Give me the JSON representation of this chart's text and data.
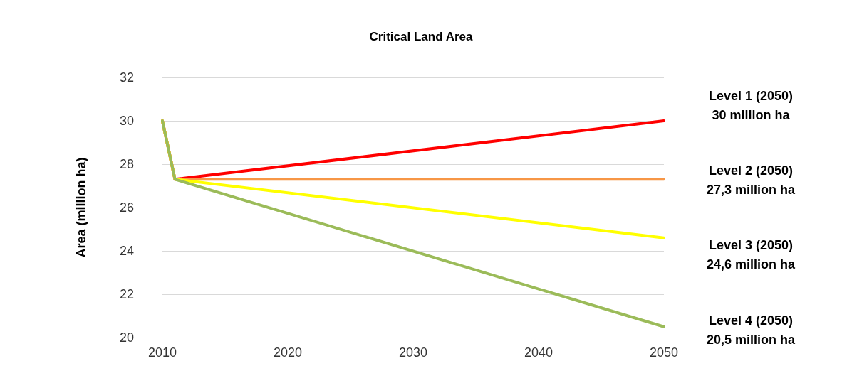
{
  "chart_data": {
    "type": "line",
    "title": "Critical Land Area",
    "ylabel": "Area (million ha)",
    "x": [
      2010,
      2011,
      2050
    ],
    "series": [
      {
        "color": "#ff0000",
        "values": [
          30,
          27.3,
          30
        ]
      },
      {
        "color": "#f79646",
        "values": [
          30,
          27.3,
          27.3
        ]
      },
      {
        "color": "#ffff00",
        "values": [
          30,
          27.3,
          24.6
        ]
      },
      {
        "color": "#9bbb59",
        "values": [
          30,
          27.3,
          20.5
        ]
      }
    ],
    "xlim": [
      2010,
      2050
    ],
    "xticks": [
      2010,
      2020,
      2030,
      2040,
      2050
    ],
    "ylim": [
      20,
      32
    ],
    "yticks": [
      20,
      22,
      24,
      26,
      28,
      30,
      32
    ],
    "grid": "y",
    "marker": "none",
    "line_style": "solid",
    "annotations": [
      "Level 1 (2050)\n30 million ha",
      "Level 2 (2050)\n27,3 million ha",
      "Level 3 (2050)\n24,6 million ha",
      "Level 4 (2050)\n20,5 million ha"
    ]
  }
}
